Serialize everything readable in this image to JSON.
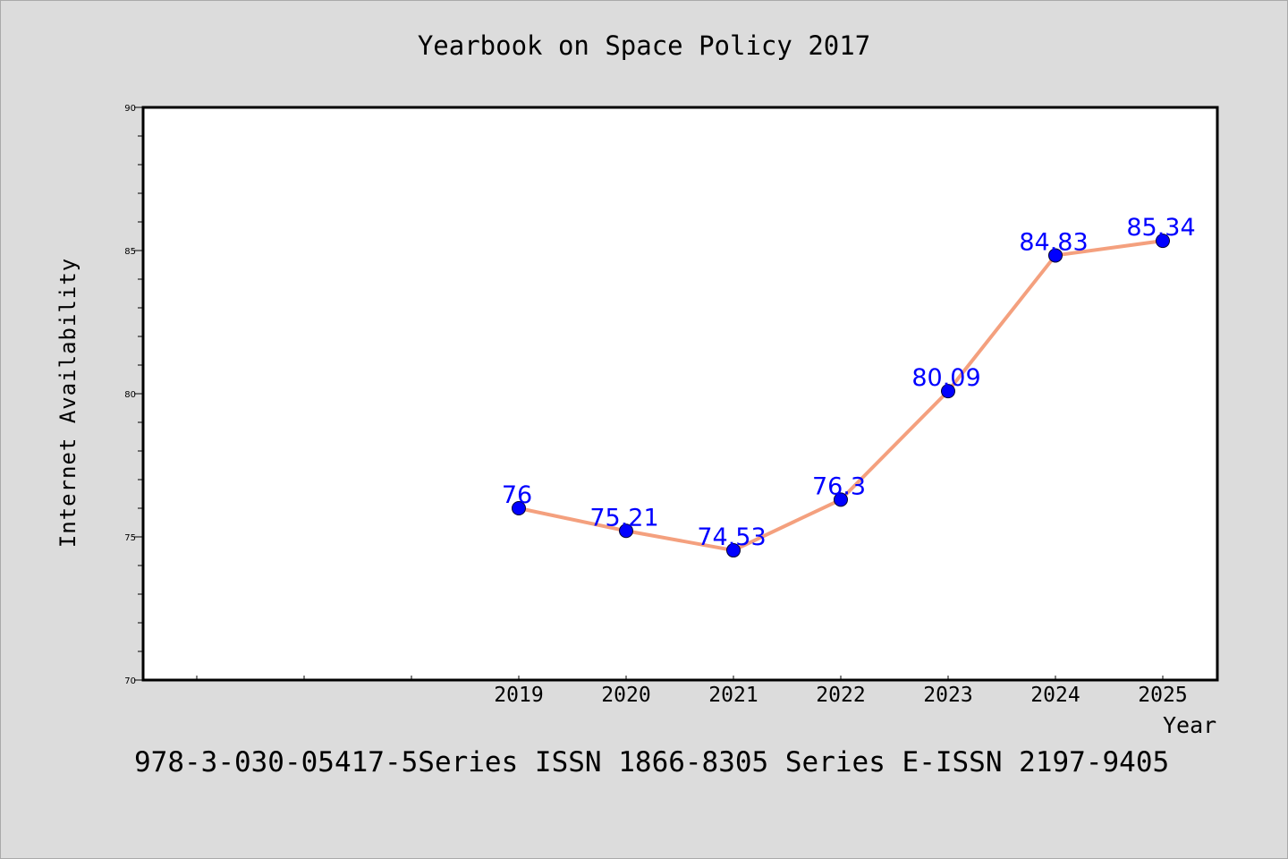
{
  "page": {
    "title": "Yearbook on Space Policy 2017",
    "footer": "978-3-030-05417-5Series ISSN 1866-8305 Series E-ISSN 2197-9405"
  },
  "colors": {
    "background": "#dcdcdc",
    "plot_background": "#ffffff",
    "line": "#f4a07e",
    "marker": "#0000ff",
    "data_label": "#0000ff"
  },
  "chart_data": {
    "type": "line",
    "title": "Yearbook on Space Policy 2017",
    "xlabel": "Year",
    "ylabel": "Internet Availability",
    "x": [
      "2019",
      "2020",
      "2021",
      "2022",
      "2023",
      "2024",
      "2025"
    ],
    "x_axis_categories": [
      "",
      "",
      "",
      "2019",
      "2020",
      "2021",
      "2022",
      "2023",
      "2024",
      "2025"
    ],
    "series": [
      {
        "values": [
          76,
          75.21,
          74.53,
          76.3,
          80.09,
          84.83,
          85.34
        ],
        "labels": [
          "76",
          "75.21",
          "74.53",
          "76.3",
          "80.09",
          "84.83",
          "85.34"
        ]
      }
    ],
    "ylim": [
      70,
      90
    ],
    "yticks": [
      "70",
      "75",
      "80",
      "85",
      "90"
    ],
    "grid": false,
    "legend": "none"
  }
}
